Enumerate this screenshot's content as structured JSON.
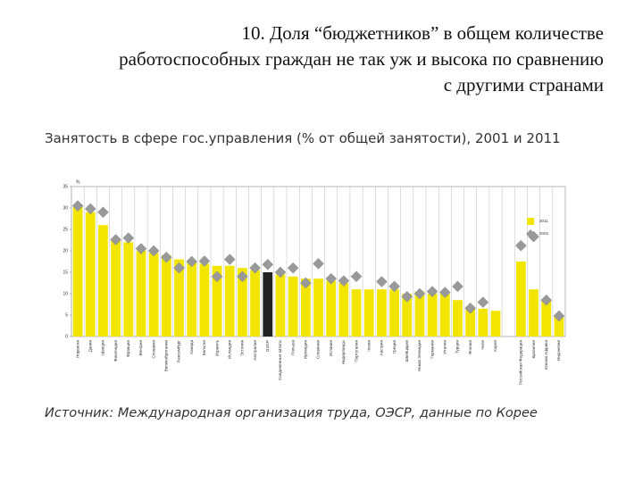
{
  "heading": [
    "10. Доля “бюджетников” в общем количестве",
    "работоспособных граждан не так уж и высока по сравнению",
    "с другими странами"
  ],
  "chart_data": {
    "type": "bar",
    "title": "Занятость в сфере гос.управления (% от общей занятости), 2001 и 2011",
    "y_label": "%",
    "categories": [
      "Норвегия",
      "Дания",
      "Швеция",
      "Финляндия",
      "Франция",
      "Венгрия",
      "Словакия",
      "Великобритания",
      "Люксембург",
      "Канада",
      "Бельгия",
      "Израиль",
      "Исландия",
      "Эстония",
      "Австралия",
      "ОЭСР",
      "Соединенные Штаты",
      "Польша",
      "Ирландия",
      "Словения",
      "Испания",
      "Нидерланды",
      "Португалия",
      "Чехия",
      "Австрия",
      "Греция",
      "Швейцария",
      "Новая Зеландия",
      "Германия",
      "Италия",
      "Турция",
      "Япония",
      "Чили",
      "Корея",
      null,
      "Российская Федерация",
      "Бразилия",
      "Южная Африка",
      "Индонезия"
    ],
    "series": [
      {
        "name": "2011",
        "marker": "bar",
        "color": "#f2e500",
        "colors": [
          "#f2e500",
          "#f2e500",
          "#f2e500",
          "#f2e500",
          "#f2e500",
          "#f2e500",
          "#f2e500",
          "#f2e500",
          "#f2e500",
          "#f2e500",
          "#f2e500",
          "#f2e500",
          "#f2e500",
          "#f2e500",
          "#f2e500",
          "#222222",
          "#f2e500",
          "#f2e500",
          "#f2e500",
          "#f2e500",
          "#f2e500",
          "#f2e500",
          "#f2e500",
          "#f2e500",
          "#f2e500",
          "#f2e500",
          "#f2e500",
          "#f2e500",
          "#f2e500",
          "#f2e500",
          "#f2e500",
          "#f2e500",
          "#f2e500",
          "#f2e500",
          "#f2e500",
          "#f2e500",
          "#f2e500",
          "#f2e500",
          "#f2e500"
        ],
        "values": [
          30.5,
          29,
          26,
          22.5,
          22,
          20,
          19.5,
          19,
          18,
          17.5,
          17,
          16.5,
          16.5,
          16,
          15.5,
          15,
          14.5,
          14,
          13.5,
          13.5,
          13,
          12.5,
          11,
          11,
          11,
          11,
          10,
          10.5,
          10,
          10,
          8.5,
          7,
          6.5,
          6,
          null,
          17.5,
          11,
          8.5,
          5
        ]
      },
      {
        "name": "2001",
        "marker": "diamond",
        "color": "#999999",
        "values": [
          30.5,
          29.8,
          29,
          22.6,
          23,
          20.5,
          20,
          18.5,
          16,
          17.5,
          17.6,
          14,
          18,
          14,
          16,
          16.8,
          15,
          16,
          12.5,
          17,
          13.5,
          13,
          14,
          null,
          12.8,
          11.7,
          9.3,
          10,
          10.5,
          10.3,
          11.7,
          6.6,
          8,
          null,
          null,
          21.2,
          23.3,
          8.5,
          4.8
        ]
      }
    ],
    "ylim": [
      0,
      35
    ],
    "yticks": [
      0,
      5,
      10,
      15,
      20,
      25,
      30,
      35
    ],
    "vertical_grid": true,
    "legend": "right",
    "source": "Источник: Международная организация труда, ОЭСР, данные по Корее"
  }
}
